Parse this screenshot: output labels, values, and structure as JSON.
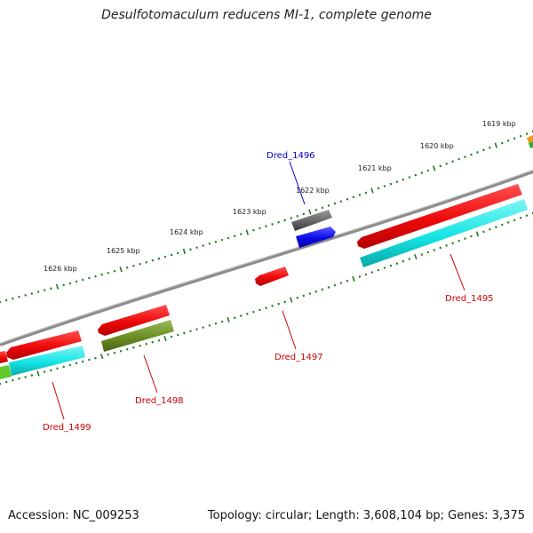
{
  "title": "Desulfotomaculum reducens MI-1, complete genome",
  "footer": {
    "accession": "Accession: NC_009253",
    "summary": "Topology: circular; Length: 3,608,104 bp; Genes: 3,375"
  },
  "kbp_ticks": [
    {
      "label": "1619 kbp"
    },
    {
      "label": "1620 kbp"
    },
    {
      "label": "1621 kbp"
    },
    {
      "label": "1622 kbp"
    },
    {
      "label": "1623 kbp"
    },
    {
      "label": "1624 kbp"
    },
    {
      "label": "1625 kbp"
    },
    {
      "label": "1626 kbp"
    }
  ],
  "gene_labels": [
    {
      "name": "Dred_1496",
      "color": "#0000cc"
    },
    {
      "name": "Dred_1495",
      "color": "#cc0000"
    },
    {
      "name": "Dred_1497",
      "color": "#cc0000"
    },
    {
      "name": "Dred_1498",
      "color": "#cc0000"
    },
    {
      "name": "Dred_1499",
      "color": "#cc0000"
    }
  ],
  "colors": {
    "backbone": "#8c8c8c",
    "tick": "#1f7a1f",
    "cds": "#ee1111",
    "rna": "#0000ee",
    "gray_feature": "#666666",
    "olive_feature": "#6b8e23",
    "cyan_feature": "#19e6e6"
  }
}
